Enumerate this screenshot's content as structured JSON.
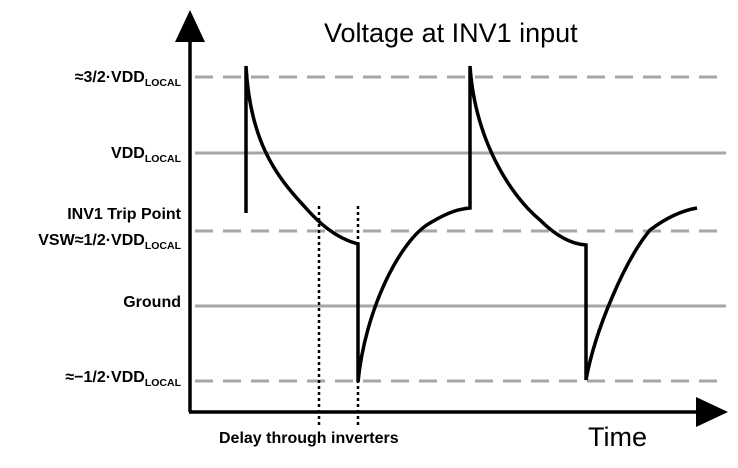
{
  "title": "Voltage at INV1 input",
  "x_axis_label": "Time",
  "delay_label": "Delay through inverters",
  "levels": {
    "three_halves": {
      "prefix": "≈3/2·VDD",
      "subscript": "LOCAL"
    },
    "vdd": {
      "prefix": "VDD",
      "subscript": "LOCAL"
    },
    "trip_point": {
      "text": "INV1 Trip Point"
    },
    "vsw": {
      "prefix": "VSW≈1/2·VDD",
      "subscript": "LOCAL"
    },
    "ground": {
      "text": "Ground"
    },
    "neg_half": {
      "prefix": "≈−1/2·VDD",
      "subscript": "LOCAL"
    }
  },
  "colors": {
    "waveform": "#000000",
    "reference_line": "#a6a6a6",
    "axis": "#000000"
  }
}
